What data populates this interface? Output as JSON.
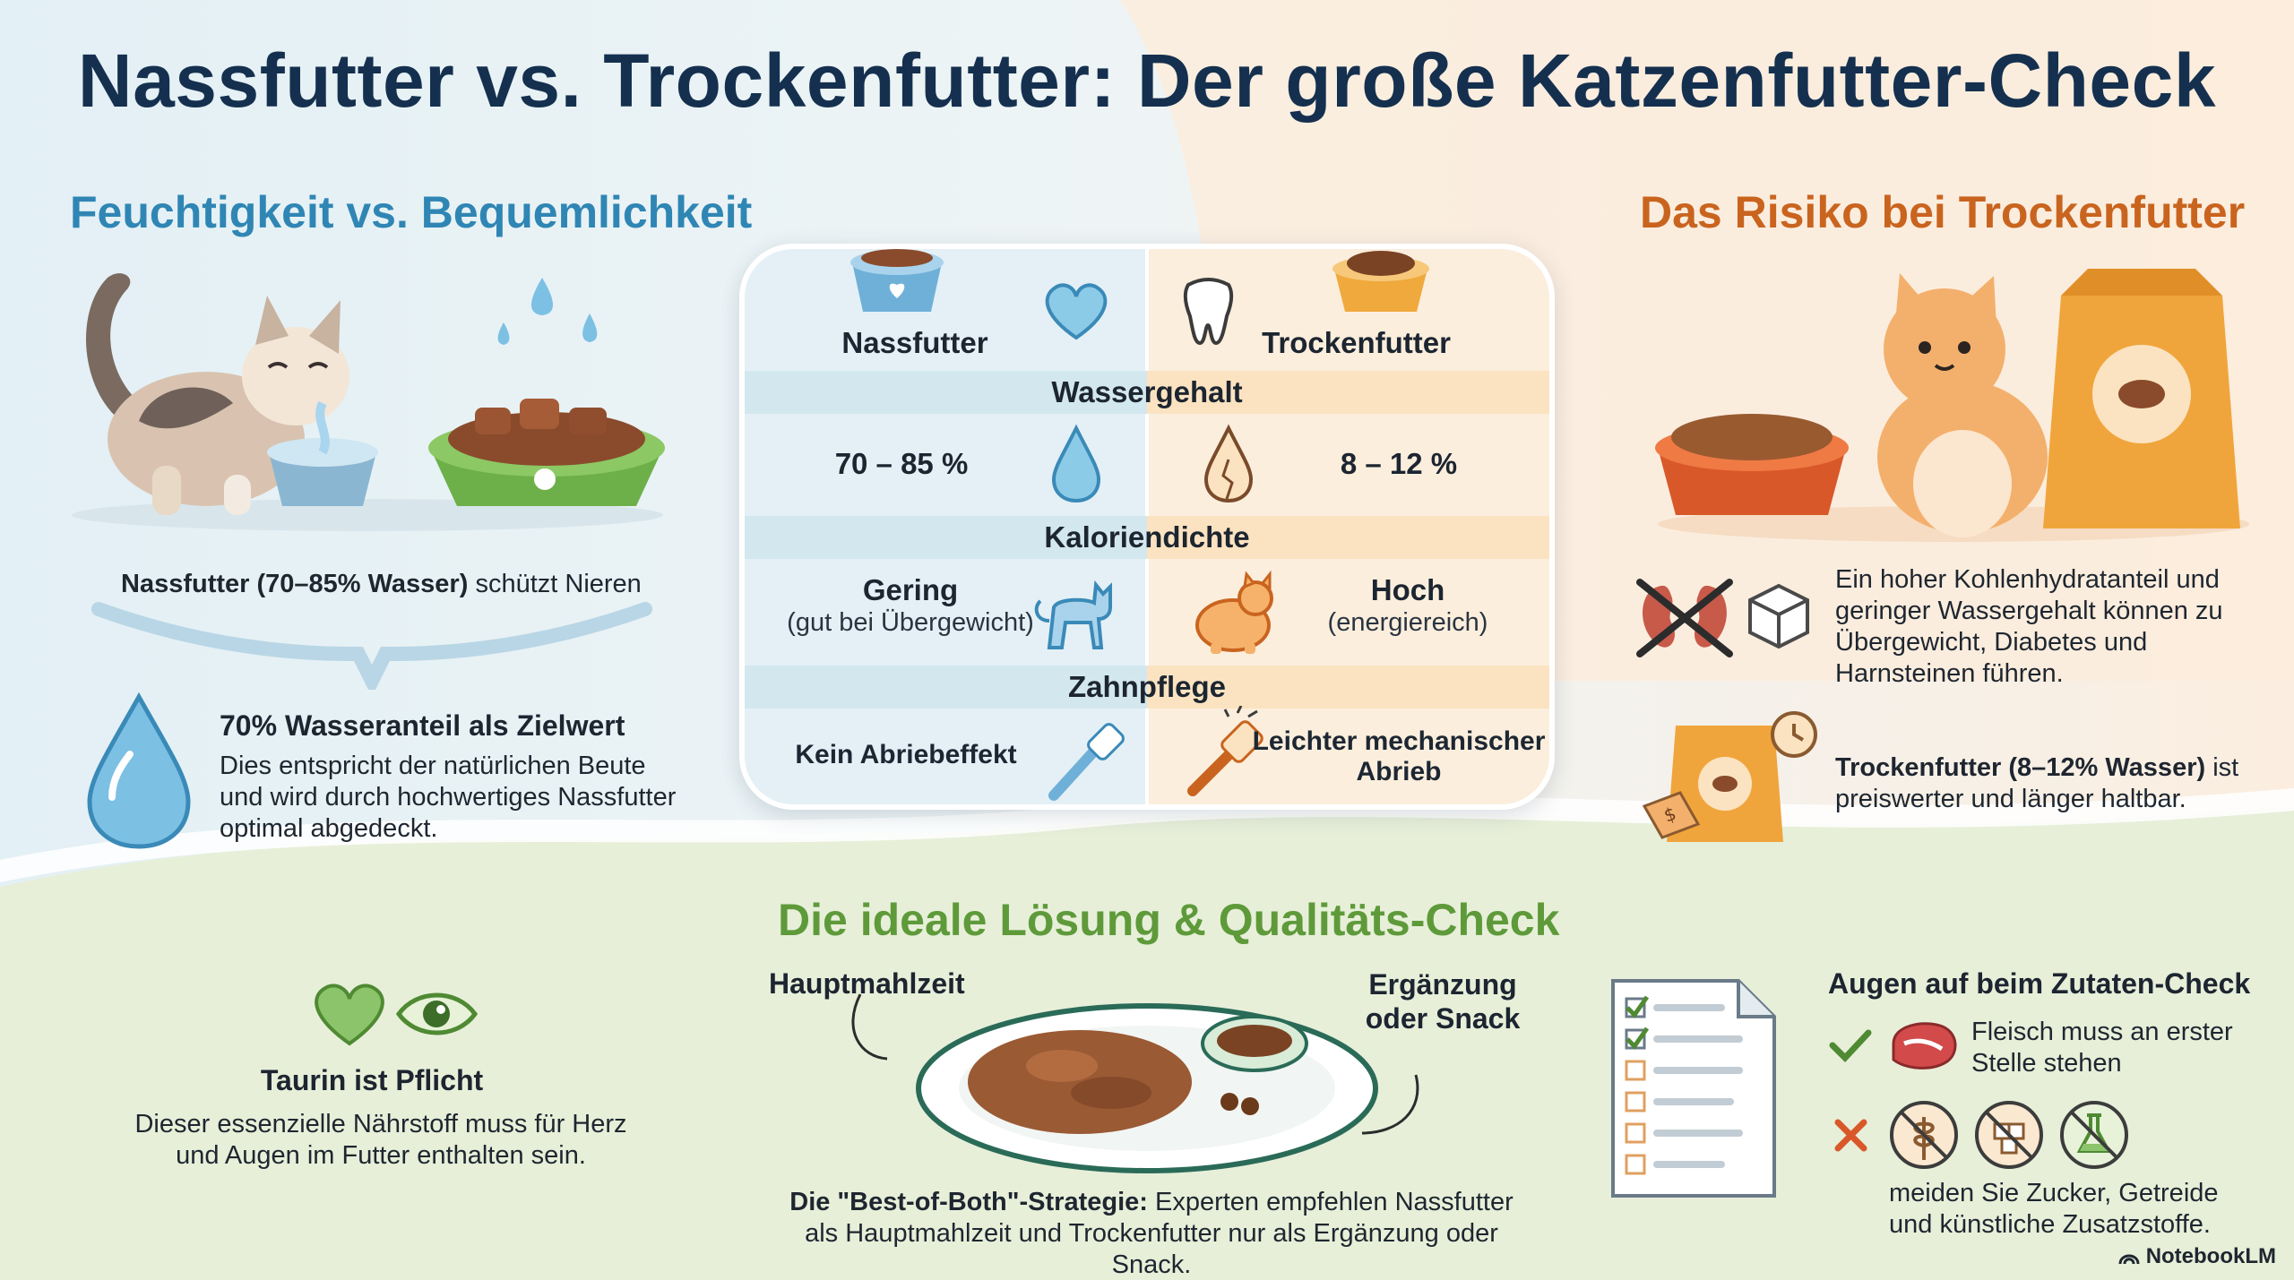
{
  "title": "Nassfutter vs. Trockenfutter: Der große Katzenfutter-Check",
  "left": {
    "heading": "Feuchtigkeit vs. Bequemlichkeit",
    "caption_bold": "Nassfutter (70–85% Wasser)",
    "caption_rest": " schützt Nieren",
    "water_title": "70% Wasseranteil als Zielwert",
    "water_text": "Dies entspricht der natürlichen Beute und wird durch hochwertiges Nassfutter optimal abgedeckt."
  },
  "table": {
    "col_left": "Nassfutter",
    "col_right": "Trockenfutter",
    "rows": [
      {
        "band": "Wassergehalt",
        "left": "70 – 85 %",
        "right": "8 – 12 %"
      },
      {
        "band": "Kaloriendichte",
        "left": "Gering",
        "left_sub": "(gut bei Übergewicht)",
        "right": "Hoch",
        "right_sub": "(energiereich)"
      },
      {
        "band": "Zahnpflege",
        "left": "Kein Abriebeffekt",
        "right": "Leichter mechanischer Abrieb"
      }
    ]
  },
  "right": {
    "heading": "Das Risiko bei Trockenfutter",
    "risk_text": "Ein hoher Kohlenhydratanteil und geringer Wassergehalt können zu Übergewicht, Diabetes und Harnsteinen führen.",
    "price_bold": "Trockenfutter (8–12% Wasser)",
    "price_rest": " ist preiswerter und länger haltbar."
  },
  "bottom": {
    "heading": "Die ideale Lösung & Qualitäts-Check",
    "taurin_title": "Taurin ist Pflicht",
    "taurin_text": "Dieser essenzielle Nährstoff muss für Herz und Augen im Futter enthalten sein.",
    "plate_left": "Hauptmahlzeit",
    "plate_right": "Ergänzung oder Snack",
    "strategy_bold": "Die \"Best-of-Both\"-Strategie:",
    "strategy_rest": " Experten empfehlen Nassfutter als Hauptmahlzeit und Trockenfutter nur als Ergänzung oder Snack.",
    "check_title": "Augen auf beim Zutaten-Check",
    "check_good": "Fleisch muss an erster Stelle stehen",
    "check_bad": "meiden Sie Zucker, Getreide und künstliche Zusatzstoffe."
  },
  "brand": "NotebookLM",
  "colors": {
    "blue": "#2f86b4",
    "orange": "#c9641f",
    "green": "#5e9a3a",
    "navy": "#15304f"
  }
}
